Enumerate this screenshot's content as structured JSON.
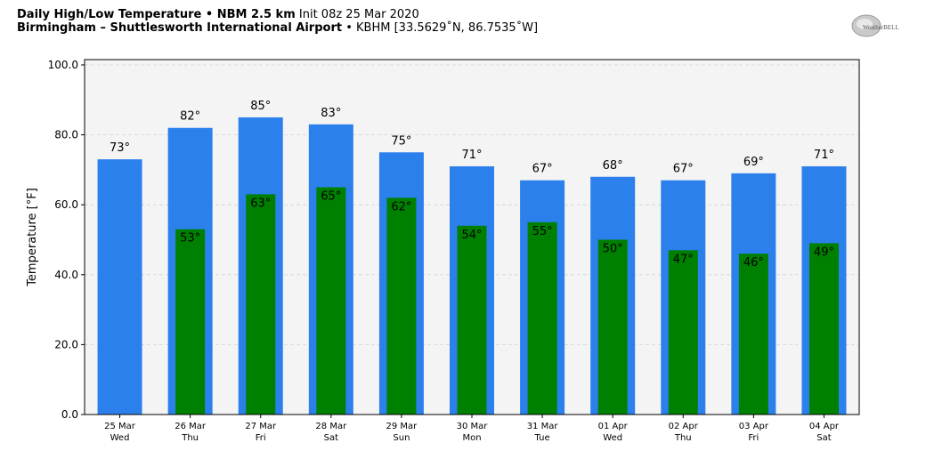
{
  "header": {
    "line1_bold": "Daily High/Low Temperature • NBM 2.5 km",
    "line1_normal": "Init 08z 25 Mar 2020",
    "line2_bold": "Birmingham – Shuttlesworth International Airport",
    "line2_normal": "• KBHM [33.5629˚N, 86.7535˚W]"
  },
  "logo": {
    "text": "WeatherBELL",
    "icon": "weatherbell-logo-icon"
  },
  "colors": {
    "high": "#2b80ec",
    "low": "#008000",
    "plot_bg": "#f4f4f4",
    "grid": "#d3d3d3"
  },
  "chart_data": {
    "type": "bar",
    "categories": [
      "25 Mar",
      "26 Mar",
      "27 Mar",
      "28 Mar",
      "29 Mar",
      "30 Mar",
      "31 Mar",
      "01 Apr",
      "02 Apr",
      "03 Apr",
      "04 Apr"
    ],
    "weekdays": [
      "Wed",
      "Thu",
      "Fri",
      "Sat",
      "Sun",
      "Mon",
      "Tue",
      "Wed",
      "Thu",
      "Fri",
      "Sat"
    ],
    "series": [
      {
        "values": [
          73,
          82,
          85,
          83,
          75,
          71,
          67,
          68,
          67,
          69,
          71
        ],
        "labels": [
          "73°",
          "82°",
          "85°",
          "83°",
          "75°",
          "71°",
          "67°",
          "68°",
          "67°",
          "69°",
          "71°"
        ]
      },
      {
        "values": [
          null,
          53,
          63,
          65,
          62,
          54,
          55,
          50,
          47,
          46,
          49
        ],
        "labels": [
          "",
          "53°",
          "63°",
          "65°",
          "62°",
          "54°",
          "55°",
          "50°",
          "47°",
          "46°",
          "49°"
        ]
      }
    ],
    "ylabel": "Temperature [°F]",
    "ylim": [
      0,
      100
    ],
    "yticks": [
      "0.0",
      "20.0",
      "40.0",
      "60.0",
      "80.0",
      "100.0"
    ],
    "grid": true
  }
}
